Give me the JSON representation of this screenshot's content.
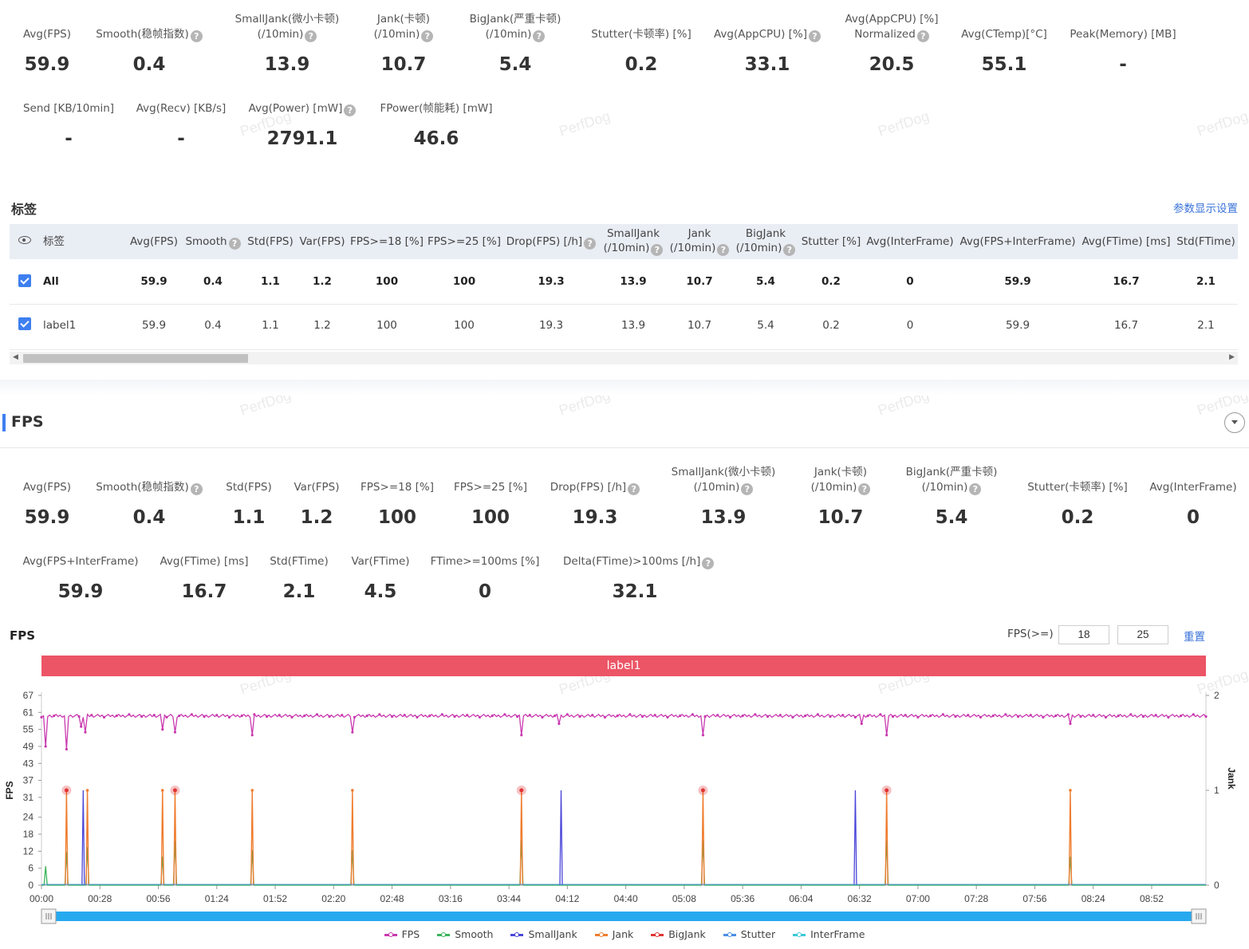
{
  "top_metrics": [
    {
      "label": [
        "Avg(FPS)"
      ],
      "help": false,
      "value": "59.9"
    },
    {
      "label": [
        "Smooth(稳帧指数)"
      ],
      "help": true,
      "value": "0.4"
    },
    {
      "label": [
        "SmallJank(微小卡顿)",
        "(/10min)"
      ],
      "help": true,
      "value": "13.9"
    },
    {
      "label": [
        "Jank(卡顿)",
        "(/10min)"
      ],
      "help": true,
      "value": "10.7"
    },
    {
      "label": [
        "BigJank(严重卡顿)",
        "(/10min)"
      ],
      "help": true,
      "value": "5.4"
    },
    {
      "label": [
        "Stutter(卡顿率) [%]"
      ],
      "help": false,
      "value": "0.2"
    },
    {
      "label": [
        "Avg(AppCPU) [%]"
      ],
      "help": true,
      "value": "33.1"
    },
    {
      "label": [
        "Avg(AppCPU) [%]",
        "Normalized"
      ],
      "help": true,
      "value": "20.5"
    },
    {
      "label": [
        "Avg(CTemp)[°C]"
      ],
      "help": false,
      "value": "55.1"
    },
    {
      "label": [
        "Peak(Memory) [MB]"
      ],
      "help": false,
      "value": "-"
    },
    {
      "label": [
        "Send [KB/10min]"
      ],
      "help": false,
      "value": "-"
    },
    {
      "label": [
        "Avg(Recv) [KB/s]"
      ],
      "help": false,
      "value": "-"
    },
    {
      "label": [
        "Avg(Power) [mW]"
      ],
      "help": true,
      "value": "2791.1"
    },
    {
      "label": [
        "FPower(帧能耗) [mW]"
      ],
      "help": false,
      "value": "46.6"
    }
  ],
  "watermark": "PerfDog",
  "labels_section": {
    "title": "标签",
    "settings_link": "参数显示设置",
    "columns": [
      {
        "label": [
          "标签"
        ],
        "help": false
      },
      {
        "label": [
          "Avg(FPS)"
        ],
        "help": false
      },
      {
        "label": [
          "Smooth"
        ],
        "help": true
      },
      {
        "label": [
          "Std(FPS)"
        ],
        "help": false
      },
      {
        "label": [
          "Var(FPS)"
        ],
        "help": false
      },
      {
        "label": [
          "FPS>=18 [%]"
        ],
        "help": false
      },
      {
        "label": [
          "FPS>=25 [%]"
        ],
        "help": false
      },
      {
        "label": [
          "Drop(FPS) [/h]"
        ],
        "help": true
      },
      {
        "label": [
          "SmallJank",
          "(/10min)"
        ],
        "help": true
      },
      {
        "label": [
          "Jank",
          "(/10min)"
        ],
        "help": true
      },
      {
        "label": [
          "BigJank",
          "(/10min)"
        ],
        "help": true
      },
      {
        "label": [
          "Stutter [%]"
        ],
        "help": false
      },
      {
        "label": [
          "Avg(InterFrame)"
        ],
        "help": false
      },
      {
        "label": [
          "Avg(FPS+InterFrame)"
        ],
        "help": false
      },
      {
        "label": [
          "Avg(FTime) [ms]"
        ],
        "help": false
      },
      {
        "label": [
          "Std(FTime)"
        ],
        "help": false
      }
    ],
    "rows": [
      {
        "name": "All",
        "checked": true,
        "values": [
          "59.9",
          "0.4",
          "1.1",
          "1.2",
          "100",
          "100",
          "19.3",
          "13.9",
          "10.7",
          "5.4",
          "0.2",
          "0",
          "59.9",
          "16.7",
          "2.1"
        ]
      },
      {
        "name": "label1",
        "checked": true,
        "values": [
          "59.9",
          "0.4",
          "1.1",
          "1.2",
          "100",
          "100",
          "19.3",
          "13.9",
          "10.7",
          "5.4",
          "0.2",
          "0",
          "59.9",
          "16.7",
          "2.1"
        ]
      }
    ]
  },
  "fps_section": {
    "title": "FPS",
    "metrics": [
      {
        "label": [
          "Avg(FPS)"
        ],
        "help": false,
        "value": "59.9"
      },
      {
        "label": [
          "Smooth(稳帧指数)"
        ],
        "help": true,
        "value": "0.4"
      },
      {
        "label": [
          "Std(FPS)"
        ],
        "help": false,
        "value": "1.1"
      },
      {
        "label": [
          "Var(FPS)"
        ],
        "help": false,
        "value": "1.2"
      },
      {
        "label": [
          "FPS>=18 [%]"
        ],
        "help": false,
        "value": "100"
      },
      {
        "label": [
          "FPS>=25 [%]"
        ],
        "help": false,
        "value": "100"
      },
      {
        "label": [
          "Drop(FPS) [/h]"
        ],
        "help": true,
        "value": "19.3"
      },
      {
        "label": [
          "SmallJank(微小卡顿)",
          "(/10min)"
        ],
        "help": true,
        "value": "13.9"
      },
      {
        "label": [
          "Jank(卡顿)",
          "(/10min)"
        ],
        "help": true,
        "value": "10.7"
      },
      {
        "label": [
          "BigJank(严重卡顿)",
          "(/10min)"
        ],
        "help": true,
        "value": "5.4"
      },
      {
        "label": [
          "Stutter(卡顿率) [%]"
        ],
        "help": false,
        "value": "0.2"
      },
      {
        "label": [
          "Avg(InterFrame)"
        ],
        "help": false,
        "value": "0"
      },
      {
        "label": [
          "Avg(FPS+InterFrame)"
        ],
        "help": false,
        "value": "59.9"
      },
      {
        "label": [
          "Avg(FTime) [ms]"
        ],
        "help": false,
        "value": "16.7"
      },
      {
        "label": [
          "Std(FTime)"
        ],
        "help": false,
        "value": "2.1"
      },
      {
        "label": [
          "Var(FTime)"
        ],
        "help": false,
        "value": "4.5"
      },
      {
        "label": [
          "FTime>=100ms [%]"
        ],
        "help": false,
        "value": "0"
      },
      {
        "label": [
          "Delta(FTime)>100ms [/h]"
        ],
        "help": true,
        "value": "32.1"
      }
    ],
    "chart_title": "FPS",
    "threshold_label": "FPS(>=)",
    "threshold_1": "18",
    "threshold_2": "25",
    "reset_label": "重置",
    "label_bar": "label1"
  },
  "chart_data": {
    "type": "line",
    "ylabel": "FPS",
    "y2label": "Jank",
    "ylim": [
      0,
      67
    ],
    "y2lim": [
      0,
      2
    ],
    "y_ticks": [
      "0",
      "6",
      "12",
      "18",
      "24",
      "31",
      "37",
      "43",
      "49",
      "55",
      "61",
      "67"
    ],
    "y2_ticks": [
      "0",
      "1",
      "2"
    ],
    "x_ticks": [
      "00:00",
      "00:28",
      "00:56",
      "01:24",
      "01:52",
      "02:20",
      "02:48",
      "03:16",
      "03:44",
      "04:12",
      "04:40",
      "05:08",
      "05:36",
      "06:04",
      "06:32",
      "07:00",
      "07:28",
      "07:56",
      "08:24",
      "08:52"
    ],
    "x_range_seconds": [
      0,
      558
    ],
    "fps_baseline": 59.8,
    "fps_dips": [
      [
        2,
        49
      ],
      [
        12,
        48
      ],
      [
        19,
        56
      ],
      [
        21,
        54
      ],
      [
        58,
        55
      ],
      [
        64,
        54
      ],
      [
        101,
        53
      ],
      [
        149,
        54
      ],
      [
        230,
        53
      ],
      [
        248,
        57
      ],
      [
        317,
        53
      ],
      [
        405,
        53
      ],
      [
        393,
        57
      ],
      [
        493,
        57
      ]
    ],
    "events": {
      "SmallJank": [
        20,
        249,
        390
      ],
      "Jank": [
        12,
        22,
        58,
        64,
        101,
        149,
        230,
        317,
        405,
        493
      ],
      "BigJank": [
        12,
        64,
        230,
        317,
        405
      ],
      "Smooth_spikes": [
        [
          2,
          0.2
        ],
        [
          12,
          0.35
        ],
        [
          22,
          0.4
        ],
        [
          58,
          0.3
        ],
        [
          64,
          0.47
        ],
        [
          101,
          0.37
        ],
        [
          149,
          0.37
        ],
        [
          230,
          0.47
        ],
        [
          317,
          0.47
        ],
        [
          405,
          0.47
        ],
        [
          493,
          0.3
        ]
      ]
    },
    "legend": [
      {
        "name": "FPS",
        "color": "#c93ab0"
      },
      {
        "name": "Smooth",
        "color": "#3cb35b"
      },
      {
        "name": "SmallJank",
        "color": "#4b46d8"
      },
      {
        "name": "Jank",
        "color": "#ef7d2f"
      },
      {
        "name": "BigJank",
        "color": "#e03535"
      },
      {
        "name": "Stutter",
        "color": "#4a90e2"
      },
      {
        "name": "InterFrame",
        "color": "#3cc8d8"
      }
    ]
  }
}
